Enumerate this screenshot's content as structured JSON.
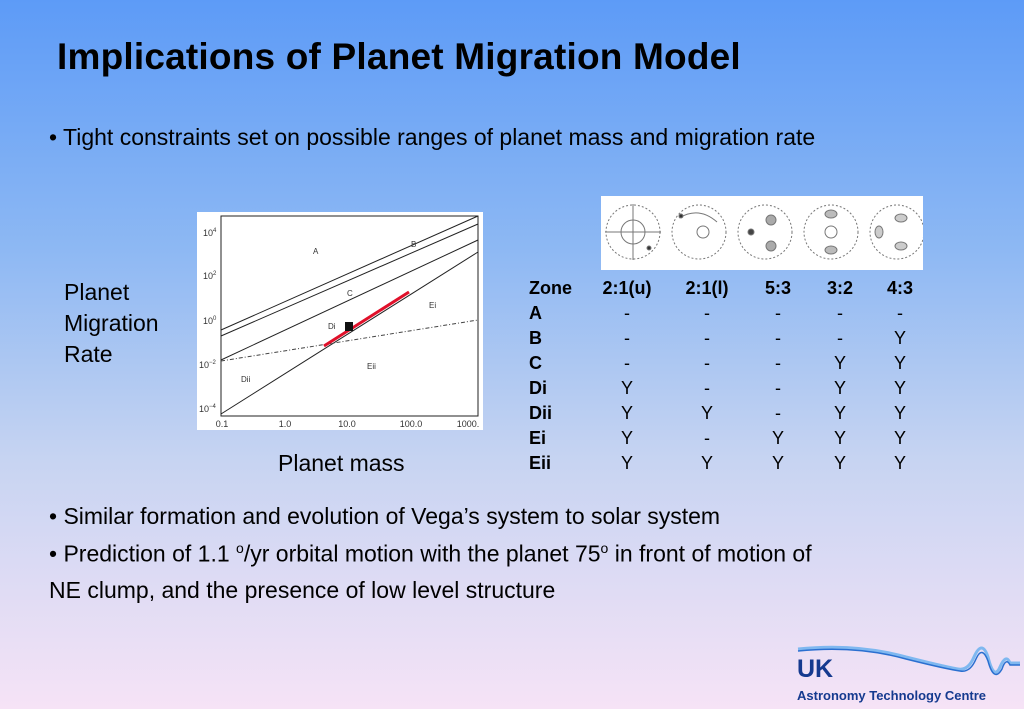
{
  "title": "Implications of Planet Migration Model",
  "bullets": {
    "b1": "• Tight constraints set on possible ranges of planet mass and migration rate",
    "b2": "• Similar formation and evolution of Vega’s system to solar system",
    "b3_pre": "• Prediction of 1.1 ",
    "b3_sup1": "o",
    "b3_mid": "/yr orbital motion with the planet 75",
    "b3_sup2": "o",
    "b3_post": " in front of motion of",
    "b3_line2": "NE clump, and the presence of low level structure"
  },
  "plot": {
    "ylabel": [
      "Planet",
      "Migration",
      "Rate"
    ],
    "xlabel": "Planet mass",
    "y_ticks": [
      {
        "base": "10",
        "exp": "4"
      },
      {
        "base": "10",
        "exp": "2"
      },
      {
        "base": "10",
        "exp": "0"
      },
      {
        "base": "10",
        "exp": "−2"
      },
      {
        "base": "10",
        "exp": "−4"
      }
    ],
    "x_ticks": [
      "0.1",
      "1.0",
      "10.0",
      "100.0",
      "1000."
    ],
    "region_labels": [
      "A",
      "B",
      "C",
      "Di",
      "Dii",
      "Ei",
      "Eii"
    ],
    "highlight_color": "#e0102a"
  },
  "table": {
    "header": [
      "Zone",
      "2:1(u)",
      "2:1(l)",
      "5:3",
      "3:2",
      "4:3"
    ],
    "rows": [
      [
        "A",
        "-",
        "-",
        "-",
        "-",
        "-"
      ],
      [
        "B",
        "-",
        "-",
        "-",
        "-",
        "Y"
      ],
      [
        "C",
        "-",
        "-",
        "-",
        "Y",
        "Y"
      ],
      [
        "Di",
        "Y",
        "-",
        "-",
        "Y",
        "Y"
      ],
      [
        "Dii",
        "Y",
        "Y",
        "-",
        "Y",
        "Y"
      ],
      [
        "Ei",
        "Y",
        "-",
        "Y",
        "Y",
        "Y"
      ],
      [
        "Eii",
        "Y",
        "Y",
        "Y",
        "Y",
        "Y"
      ]
    ]
  },
  "logo": {
    "uk": "UK",
    "name": "Astronomy Technology Centre"
  }
}
